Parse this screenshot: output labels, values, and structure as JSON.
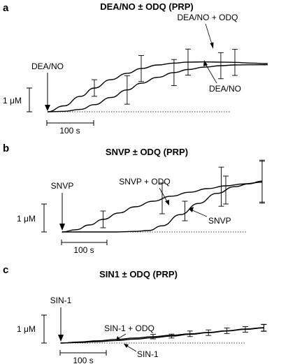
{
  "figure": {
    "panels": [
      {
        "panel_label": "a",
        "title": "DEA/NO ± ODQ (PRP)",
        "arrow_label": "DEA/NO",
        "scale_y_label": "1 μM",
        "scale_x_label": "100 s",
        "series_labels": [
          "DEA/NO + ODQ",
          "DEA/NO"
        ]
      },
      {
        "panel_label": "b",
        "title": "SNVP ± ODQ (PRP)",
        "arrow_label": "SNVP",
        "scale_y_label": "1 μM",
        "scale_x_label": "100 s",
        "series_labels": [
          "SNVP + ODQ",
          "SNVP"
        ]
      },
      {
        "panel_label": "c",
        "title": "SIN1 ± ODQ (PRP)",
        "arrow_label": "SIN-1",
        "scale_y_label": "1 μM",
        "scale_x_label": "100 s",
        "series_labels": [
          "SIN-1 + ODQ",
          "SIN-1"
        ]
      }
    ]
  },
  "chart_data": [
    {
      "type": "line",
      "title": "DEA/NO ± ODQ (PRP)",
      "x_unit": "s",
      "y_unit": "μM",
      "injection_time": 0,
      "xlim": [
        0,
        500
      ],
      "ylim": [
        0,
        2.5
      ],
      "series": [
        {
          "name": "DEA/NO + ODQ",
          "x": [
            0,
            35,
            70,
            100,
            135,
            170,
            200,
            235,
            270,
            300,
            335,
            370,
            400,
            435,
            470
          ],
          "y": [
            0,
            0.25,
            0.65,
            1.0,
            1.35,
            1.62,
            1.82,
            1.97,
            2.05,
            2.09,
            2.1,
            2.09,
            2.08,
            2.05,
            2.03
          ],
          "errors": [
            {
              "x": 100,
              "y": 1.0,
              "err": 0.35
            },
            {
              "x": 200,
              "y": 1.82,
              "err": 0.55
            },
            {
              "x": 300,
              "y": 2.09,
              "err": 0.55
            },
            {
              "x": 400,
              "y": 2.08,
              "err": 0.55
            }
          ]
        },
        {
          "name": "DEA/NO",
          "x": [
            0,
            35,
            70,
            100,
            135,
            170,
            200,
            235,
            270,
            300,
            335,
            370,
            400,
            435,
            470
          ],
          "y": [
            0,
            0.02,
            0.1,
            0.3,
            0.6,
            0.92,
            1.2,
            1.45,
            1.65,
            1.78,
            1.88,
            1.94,
            1.97,
            1.98,
            1.98
          ],
          "errors": [
            {
              "x": 170,
              "y": 0.92,
              "err": 0.6
            },
            {
              "x": 270,
              "y": 1.65,
              "err": 0.55
            },
            {
              "x": 370,
              "y": 1.94,
              "err": 0.55
            }
          ]
        }
      ]
    },
    {
      "type": "line",
      "title": "SNVP ± ODQ (PRP)",
      "x_unit": "s",
      "y_unit": "μM",
      "injection_time": 0,
      "xlim": [
        0,
        500
      ],
      "ylim": [
        0,
        2.5
      ],
      "series": [
        {
          "name": "SNVP + ODQ",
          "x": [
            0,
            30,
            60,
            90,
            125,
            160,
            200,
            240,
            280,
            320,
            360,
            400,
            440
          ],
          "y": [
            0,
            0.08,
            0.25,
            0.45,
            0.68,
            0.9,
            1.1,
            1.28,
            1.42,
            1.55,
            1.65,
            1.72,
            1.78
          ],
          "errors": [
            {
              "x": 90,
              "y": 0.45,
              "err": 0.3
            },
            {
              "x": 220,
              "y": 1.2,
              "err": 0.55
            },
            {
              "x": 350,
              "y": 1.62,
              "err": 0.7
            },
            {
              "x": 440,
              "y": 1.78,
              "err": 0.75
            }
          ]
        },
        {
          "name": "SNVP",
          "x": [
            0,
            40,
            80,
            120,
            160,
            190,
            220,
            260,
            300,
            340,
            380,
            410,
            440
          ],
          "y": [
            0,
            0,
            0,
            0,
            0.02,
            0.05,
            0.22,
            0.62,
            1.02,
            1.38,
            1.62,
            1.72,
            1.82
          ],
          "errors": [
            {
              "x": 270,
              "y": 0.75,
              "err": 0.35
            },
            {
              "x": 360,
              "y": 1.5,
              "err": 0.5
            },
            {
              "x": 440,
              "y": 1.82,
              "err": 0.75
            }
          ]
        }
      ]
    },
    {
      "type": "line",
      "title": "SIN1 ± ODQ (PRP)",
      "x_unit": "s",
      "y_unit": "μM",
      "injection_time": 0,
      "xlim": [
        0,
        500
      ],
      "ylim": [
        0,
        2.5
      ],
      "series": [
        {
          "name": "SIN-1 + ODQ",
          "x": [
            0,
            40,
            80,
            120,
            160,
            200,
            240,
            280,
            320,
            360,
            400,
            440
          ],
          "y": [
            0,
            0.04,
            0.08,
            0.13,
            0.18,
            0.23,
            0.28,
            0.33,
            0.38,
            0.44,
            0.5,
            0.55
          ],
          "errors": [
            {
              "x": 200,
              "y": 0.23,
              "err": 0.08
            },
            {
              "x": 280,
              "y": 0.33,
              "err": 0.1
            },
            {
              "x": 360,
              "y": 0.44,
              "err": 0.1
            },
            {
              "x": 440,
              "y": 0.55,
              "err": 0.12
            }
          ]
        },
        {
          "name": "SIN-1",
          "x": [
            0,
            40,
            80,
            120,
            160,
            200,
            240,
            280,
            320,
            360,
            400,
            440
          ],
          "y": [
            0,
            0.02,
            0.05,
            0.09,
            0.14,
            0.19,
            0.25,
            0.31,
            0.37,
            0.43,
            0.49,
            0.54
          ],
          "errors": [
            {
              "x": 240,
              "y": 0.25,
              "err": 0.07
            },
            {
              "x": 320,
              "y": 0.37,
              "err": 0.1
            },
            {
              "x": 400,
              "y": 0.49,
              "err": 0.1
            },
            {
              "x": 440,
              "y": 0.54,
              "err": 0.12
            }
          ]
        }
      ]
    }
  ]
}
